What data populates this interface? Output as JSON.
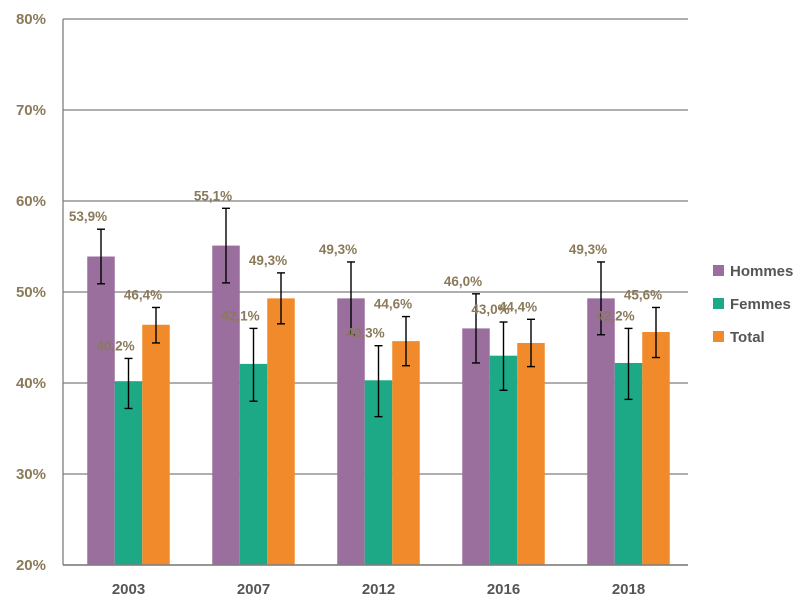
{
  "chart_data": {
    "type": "bar",
    "title": "",
    "xlabel": "",
    "ylabel": "",
    "categories": [
      "2003",
      "2007",
      "2012",
      "2016",
      "2018"
    ],
    "ylim": [
      20,
      80
    ],
    "yticks": [
      "20%",
      "30%",
      "40%",
      "50%",
      "60%",
      "70%",
      "80%"
    ],
    "ytick_values": [
      20,
      30,
      40,
      50,
      60,
      70,
      80
    ],
    "grid": true,
    "legend_position": "right",
    "series": [
      {
        "name": "Hommes",
        "color": "#9a6f9e",
        "values": [
          53.9,
          55.1,
          49.3,
          46.0,
          49.3
        ],
        "labels": [
          "53,9%",
          "55,1%",
          "49,3%",
          "46,0%",
          "49,3%"
        ],
        "err_low": [
          50.9,
          51.0,
          45.3,
          42.2,
          45.3
        ],
        "err_high": [
          56.9,
          59.2,
          53.3,
          49.8,
          53.3
        ]
      },
      {
        "name": "Femmes",
        "color": "#1da886",
        "values": [
          40.2,
          42.1,
          40.3,
          43.0,
          42.2
        ],
        "labels": [
          "40,2%",
          "42,1%",
          "40,3%",
          "43,0%",
          "42,2%"
        ],
        "err_low": [
          37.2,
          38.0,
          36.3,
          39.2,
          38.2
        ],
        "err_high": [
          42.7,
          46.0,
          44.1,
          46.7,
          46.0
        ]
      },
      {
        "name": "Total",
        "color": "#f08a2a",
        "values": [
          46.4,
          49.3,
          44.6,
          44.4,
          45.6
        ],
        "labels": [
          "46,4%",
          "49,3%",
          "44,6%",
          "44,4%",
          "45,6%"
        ],
        "err_low": [
          44.4,
          46.5,
          41.9,
          41.8,
          42.8
        ],
        "err_high": [
          48.3,
          52.1,
          47.3,
          47.0,
          48.3
        ]
      }
    ]
  }
}
